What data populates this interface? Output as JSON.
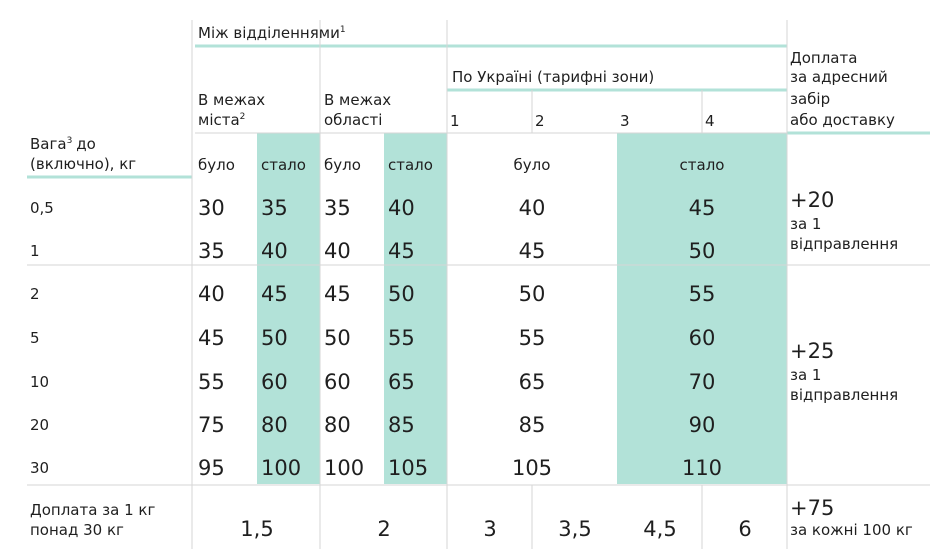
{
  "header": {
    "group": "Між відділеннями",
    "group_sup": "1",
    "city": [
      "В межах",
      "міста"
    ],
    "city_sup": "2",
    "region": [
      "В межах",
      "області"
    ],
    "ukraine": "По Україні (тарифні зони)",
    "zones": [
      "1",
      "2",
      "3",
      "4"
    ],
    "surcharge": [
      "Доплата",
      "за адресний",
      "забір",
      "або доставку"
    ],
    "weight": [
      "Вага",
      "до",
      "(включно), кг"
    ],
    "weight_sup": "3",
    "sub": [
      "було",
      "стало",
      "було",
      "стало",
      "було",
      "стало"
    ]
  },
  "rows": [
    {
      "weight": "0,5",
      "city": [
        30,
        35
      ],
      "region": [
        35,
        40
      ],
      "ukraine": [
        40,
        45
      ]
    },
    {
      "weight": "1",
      "city": [
        35,
        40
      ],
      "region": [
        40,
        45
      ],
      "ukraine": [
        45,
        50
      ]
    },
    {
      "weight": "2",
      "city": [
        40,
        45
      ],
      "region": [
        45,
        50
      ],
      "ukraine": [
        50,
        55
      ]
    },
    {
      "weight": "5",
      "city": [
        45,
        50
      ],
      "region": [
        50,
        55
      ],
      "ukraine": [
        55,
        60
      ]
    },
    {
      "weight": "10",
      "city": [
        55,
        60
      ],
      "region": [
        60,
        65
      ],
      "ukraine": [
        65,
        70
      ]
    },
    {
      "weight": "20",
      "city": [
        75,
        80
      ],
      "region": [
        80,
        85
      ],
      "ukraine": [
        85,
        90
      ]
    },
    {
      "weight": "30",
      "city": [
        95,
        100
      ],
      "region": [
        100,
        105
      ],
      "ukraine": [
        105,
        110
      ]
    }
  ],
  "surcharges": [
    {
      "amount": "+20",
      "note": [
        "за 1",
        "відправлення"
      ]
    },
    {
      "amount": "+25",
      "note": [
        "за 1",
        "відправлення"
      ]
    }
  ],
  "footer": {
    "label": [
      "Доплата за 1 кг",
      "понад 30 кг"
    ],
    "values": [
      "1,5",
      "2",
      "3",
      "3,5",
      "4,5",
      "6"
    ],
    "surcharge": "+75",
    "note": "за кожні 100 кг"
  }
}
